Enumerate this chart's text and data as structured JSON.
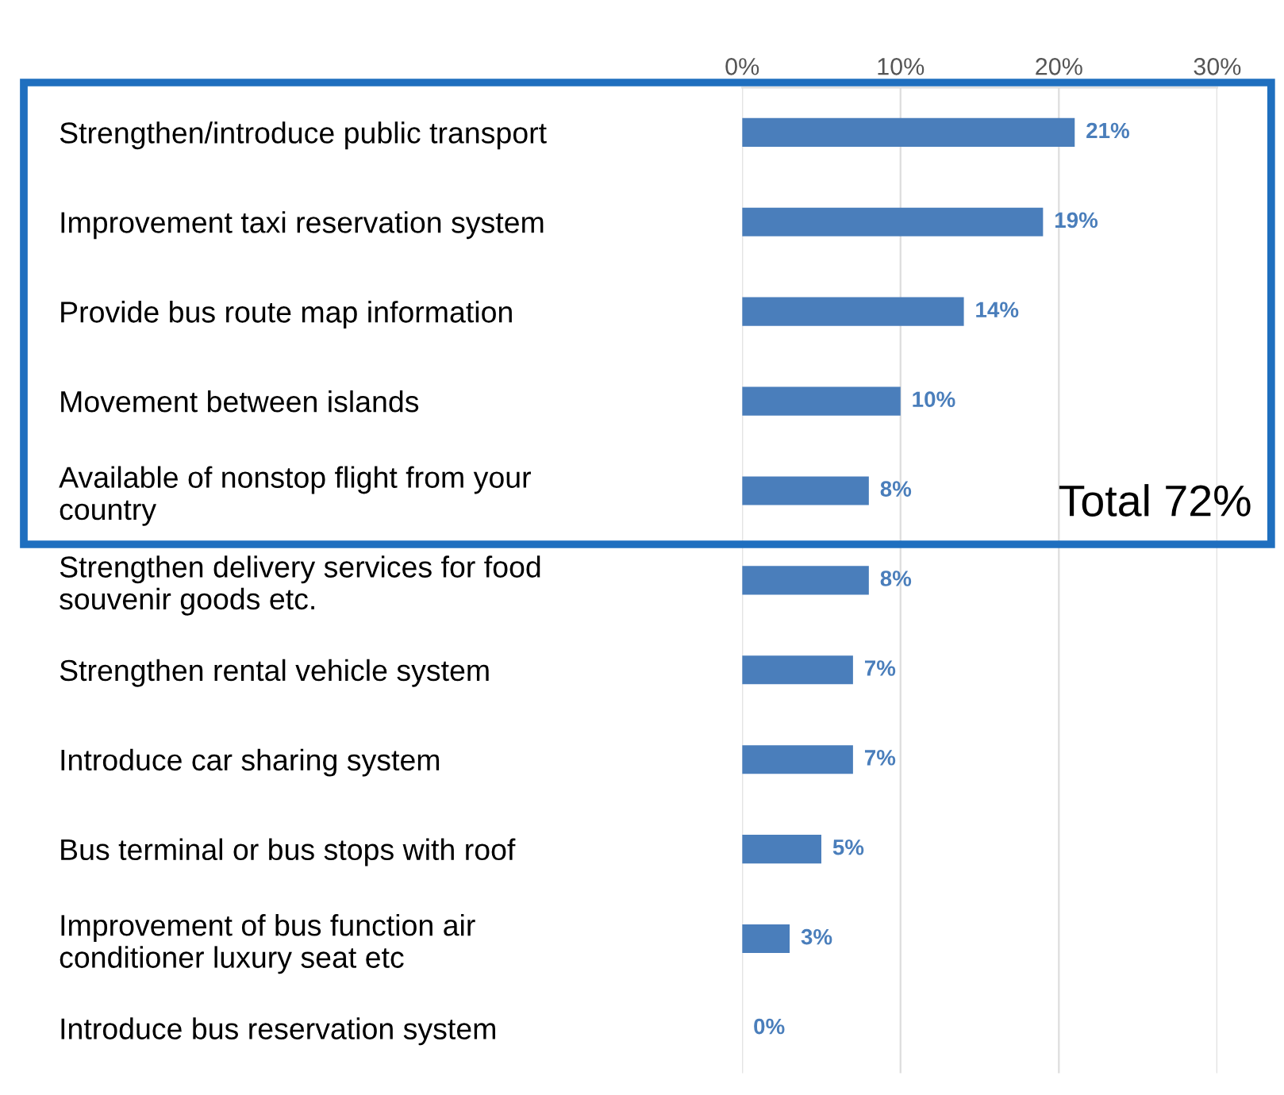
{
  "chart_data": {
    "type": "bar",
    "orientation": "horizontal",
    "categories": [
      "Strengthen/introduce public transport",
      "Improvement taxi reservation system",
      "Provide bus route map information",
      "Movement between islands",
      "Available of nonstop flight from your country",
      "Strengthen delivery services for food souvenir goods etc.",
      "Strengthen rental vehicle system",
      "Introduce car sharing system",
      "Bus terminal or bus stops with roof",
      "Improvement of bus function air conditioner luxury seat etc",
      "Introduce bus reservation system"
    ],
    "values": [
      21,
      19,
      14,
      10,
      8,
      8,
      7,
      7,
      5,
      3,
      0
    ],
    "color": "#4a7ebb",
    "value_labels": [
      "21%",
      "19%",
      "14%",
      "10%",
      "8%",
      "8%",
      "7%",
      "7%",
      "5%",
      "3%",
      "0%"
    ],
    "xlim": [
      0,
      30
    ],
    "xticks": [
      {
        "value": 0,
        "label": "0%"
      },
      {
        "value": 10,
        "label": "10%"
      },
      {
        "value": 20,
        "label": "20%"
      },
      {
        "value": 30,
        "label": "30%"
      }
    ],
    "grid": "x",
    "annotations": [
      "Total 72%"
    ]
  }
}
